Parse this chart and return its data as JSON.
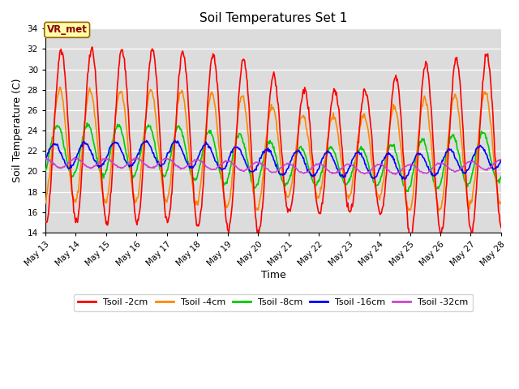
{
  "title": "Soil Temperatures Set 1",
  "xlabel": "Time",
  "ylabel": "Soil Temperature (C)",
  "ylim": [
    14,
    34
  ],
  "yticks": [
    14,
    16,
    18,
    20,
    22,
    24,
    26,
    28,
    30,
    32,
    34
  ],
  "fig_bg_color": "#ffffff",
  "plot_bg_color": "#dcdcdc",
  "annotation_text": "VR_met",
  "annotation_bg": "#ffffaa",
  "annotation_border": "#996600",
  "series": {
    "Tsoil -2cm": {
      "color": "#ff0000",
      "lw": 1.2
    },
    "Tsoil -4cm": {
      "color": "#ff8800",
      "lw": 1.2
    },
    "Tsoil -8cm": {
      "color": "#00cc00",
      "lw": 1.2
    },
    "Tsoil -16cm": {
      "color": "#0000ff",
      "lw": 1.2
    },
    "Tsoil -32cm": {
      "color": "#cc44cc",
      "lw": 1.2
    }
  },
  "x_start_day": 13,
  "x_end_day": 28,
  "xtick_days": [
    13,
    14,
    15,
    16,
    17,
    18,
    19,
    20,
    21,
    22,
    23,
    24,
    25,
    26,
    27,
    28
  ],
  "n_points": 721
}
